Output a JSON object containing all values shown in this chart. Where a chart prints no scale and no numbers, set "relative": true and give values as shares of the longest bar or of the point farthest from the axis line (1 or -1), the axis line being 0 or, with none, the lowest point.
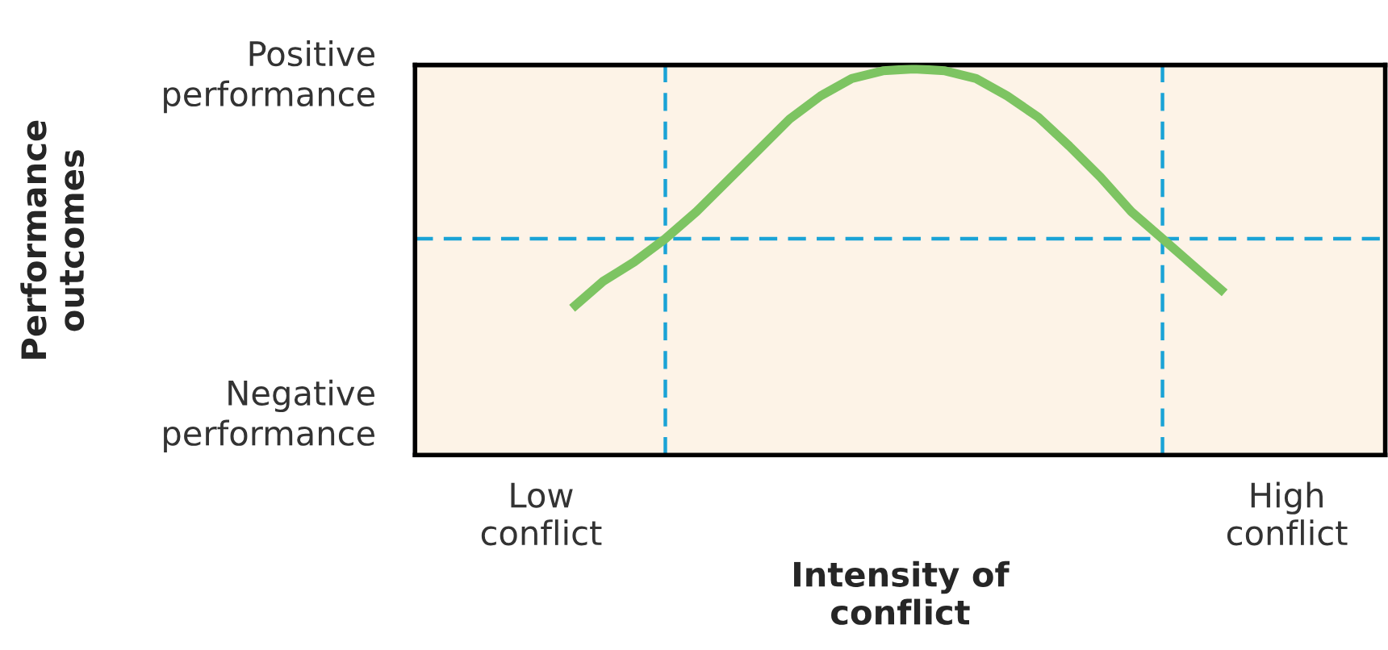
{
  "chart_data": {
    "type": "line",
    "relative": true,
    "xlabel": "Intensity of\nconflict",
    "categories": [
      "Low\nconflict",
      null,
      null,
      null,
      null,
      null,
      null,
      null,
      null,
      null,
      null,
      null,
      null,
      null,
      null,
      null,
      null,
      null,
      null,
      null,
      null,
      null,
      null,
      null,
      "High\nconflict"
    ],
    "annotations": [
      "Positive\nperformance",
      "Negative\nperformance",
      "Performance\noutcomes"
    ],
    "series": [
      {
        "color": "#7dc462",
        "values": [
          null,
          0.38,
          0.45,
          0.5,
          0.56,
          0.63,
          0.71,
          0.79,
          0.87,
          0.93,
          0.975,
          0.995,
          1.0,
          0.995,
          0.975,
          0.93,
          0.875,
          0.8,
          0.72,
          0.63,
          0.56,
          0.49,
          0.42,
          null,
          null
        ]
      }
    ],
    "ref_lines": [
      {
        "axis": "y",
        "value": 0.56,
        "color": "#1aa3d6",
        "line_style": "dashed"
      }
    ],
    "legend": false
  }
}
